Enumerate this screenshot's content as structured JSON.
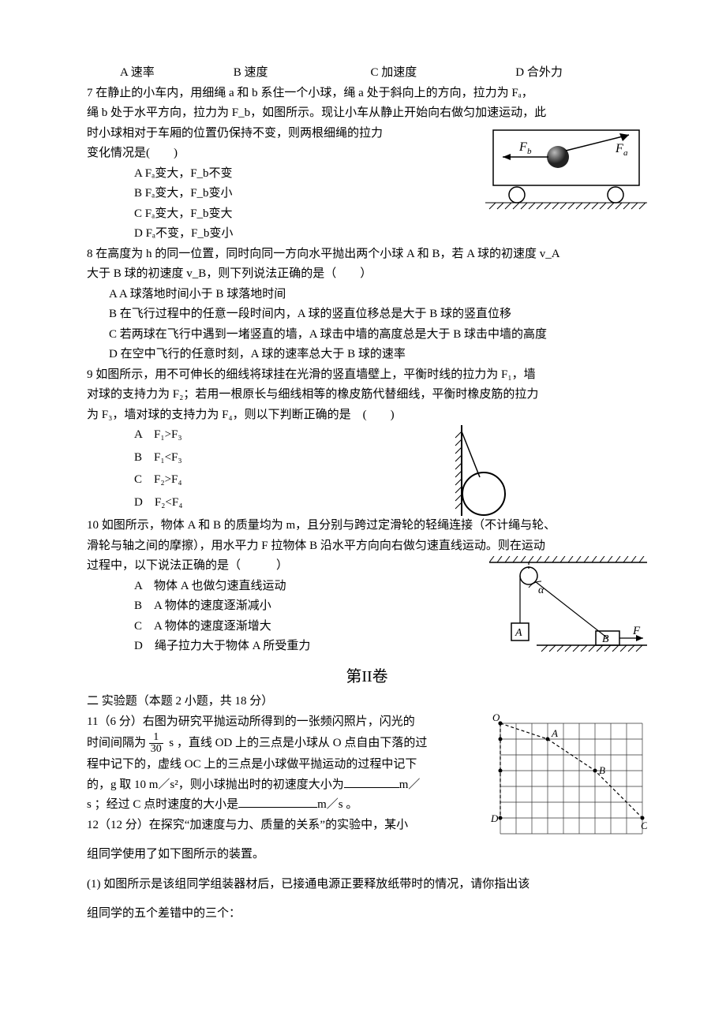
{
  "q6opts": {
    "A": "A 速率",
    "B": "B 速度",
    "C": "C 加速度",
    "D": "D 合外力",
    "widths": {
      "A": 140,
      "B": 170,
      "C": 180,
      "D": 120
    }
  },
  "q7": {
    "stem1": "7 在静止的小车内，用细绳 a 和 b 系住一个小球，绳 a 处于斜向上的方向，拉力为 Fₐ，",
    "stem2": "绳 b 处于水平方向，拉力为 F_b，如图所示。现让小车从静止开始向右做匀加速运动，此",
    "stem3": "时小球相对于车厢的位置仍保持不变，则两根细绳的拉力",
    "stem4": "变化情况是(　　)",
    "opts": [
      "A  Fₐ变大，F_b不变",
      "B  Fₐ变大，F_b变小",
      "C  Fₐ变大，F_b变大",
      "D  Fₐ不变，F_b变小"
    ]
  },
  "q8": {
    "stem1": "8 在高度为 h 的同一位置，同时向同一方向水平抛出两个小球 A 和 B，若 A 球的初速度 v_A",
    "stem2": "大于 B 球的初速度 v_B，则下列说法正确的是（　　）",
    "opts": [
      "A  A 球落地时间小于 B 球落地时间",
      "B  在飞行过程中的任意一段时间内，A 球的竖直位移总是大于 B 球的竖直位移",
      "C  若两球在飞行中遇到一堵竖直的墙，A 球击中墙的高度总是大于 B 球击中墙的高度",
      "D  在空中飞行的任意时刻，A 球的速率总大于 B 球的速率"
    ]
  },
  "q9": {
    "stem1": "9 如图所示，用不可伸长的细线将球挂在光滑的竖直墙壁上，平衡时线的拉力为 F₁，墙",
    "stem2": "对球的支持力为 F₂；若用一根原长与细线相等的橡皮筋代替细线，平衡时橡皮筋的拉力",
    "stem3": "为 F₃，墙对球的支持力为 F₄，则以下判断正确的是　(　　)",
    "opts": [
      "A　F₁>F₃",
      "B　F₁<F₃",
      "C　F₂>F₄",
      "D　F₂<F₄"
    ]
  },
  "q10": {
    "stem1": "10 如图所示，物体 A 和 B 的质量均为 m，且分别与跨过定滑轮的轻绳连接（不计绳与轮、",
    "stem2": "滑轮与轴之间的摩擦），用水平力 F 拉物体 B 沿水平方向向右做匀速直线运动。则在运动",
    "stem3": "过程中，以下说法正确的是（　　　）",
    "opts": [
      "A　物体 A 也做匀速直线运动",
      "B　A 物体的速度逐渐减小",
      "C　A 物体的速度逐渐增大",
      "D　绳子拉力大于物体 A 所受重力"
    ]
  },
  "sec2": {
    "title": "第II卷",
    "sub": "二 实验题（本题 2 小题，共 18 分）"
  },
  "q11": {
    "p1a": "11（6 分）右图为研究平抛运动所得到的一张频闪照片，闪光的",
    "p1b_a": "时间间隔为",
    "frac_num": "1",
    "frac_den": "30",
    "p1b_b": "s ，直线 OD 上的三点是小球从 O 点自由下落的过",
    "p1c": "程中记下的，虚线 OC 上的三点是小球做平抛运动的过程中记下",
    "p1d_a": "的，g 取 10 m／s²，则小球抛出时的初速度大小为",
    "p1d_b": "m／",
    "p1e_a": "s ；经过 C 点时速度的大小是",
    "p1e_b": "m／s 。"
  },
  "q12": {
    "p1": "12（12 分）在探究“加速度与力、质量的关系”的实验中，某小",
    "p2": "组同学使用了如下图所示的装置。",
    "p3": "(1) 如图所示是该组同学组装器材后，已接通电源正要释放纸带时的情况，请你指出该",
    "p4": "组同学的五个差错中的三个："
  },
  "figures": {
    "cart": {
      "bg": "#ffffff",
      "stroke": "#000000",
      "hatch": "#000000",
      "label_Fb": "F_b",
      "label_Fa": "Fₐ"
    },
    "ball_wall": {
      "stroke": "#000000"
    },
    "pulley": {
      "stroke": "#000000",
      "alpha": "α",
      "A": "A",
      "B": "B",
      "F": "F"
    },
    "grid": {
      "rows": 7,
      "cols": 9,
      "stroke": "#333333",
      "O": "O",
      "A": "A",
      "B": "B",
      "C": "C",
      "D": "D",
      "od_pts": [
        [
          0,
          0
        ],
        [
          0,
          1
        ],
        [
          0,
          3
        ],
        [
          0,
          6
        ]
      ],
      "oc_pts": [
        [
          0,
          0
        ],
        [
          3,
          1
        ],
        [
          6,
          3
        ],
        [
          9,
          6
        ]
      ]
    }
  }
}
